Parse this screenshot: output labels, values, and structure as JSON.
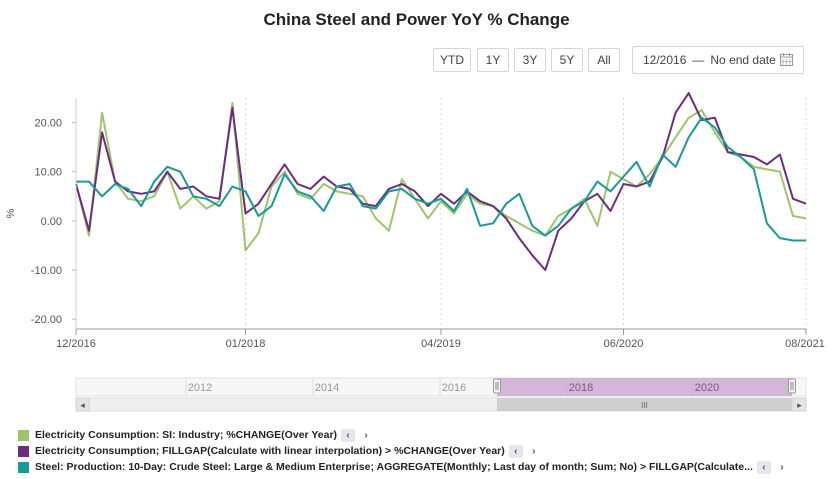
{
  "title": "China Steel and Power YoY % Change",
  "range_buttons": [
    "YTD",
    "1Y",
    "3Y",
    "5Y",
    "All"
  ],
  "date_range": {
    "start": "12/2016",
    "separator": "—",
    "end": "No end date"
  },
  "calendar_icon": "calendar-icon",
  "navigator": {
    "year_labels": [
      "2012",
      "2014",
      "2016",
      "2018",
      "2020"
    ],
    "scroll_left": "◂",
    "scroll_right": "▸",
    "grip": "III"
  },
  "legend": [
    {
      "label": "Electricity Consumption: SI: Industry; %CHANGE(Over Year)",
      "color": "#9dc56a"
    },
    {
      "label": "Electricity Consumption; FILLGAP(Calculate with linear interpolation) > %CHANGE(Over Year)",
      "color": "#6d2c7e"
    },
    {
      "label": "Steel: Production: 10-Day: Crude Steel: Large & Medium Enterprise; AGGREGATE(Monthly; Last day of month; Sum; No) > FILLGAP(Calculate...",
      "color": "#169b97"
    }
  ],
  "legend_nav": {
    "prev": "‹",
    "next": "›"
  },
  "chart_data": {
    "type": "line",
    "ylabel": "%",
    "ylim": [
      -22,
      25
    ],
    "yticks": [
      20,
      10,
      0,
      -10,
      -20
    ],
    "ytick_labels": [
      "20.00",
      "10.00",
      "0.00",
      "-10.00",
      "-20.00"
    ],
    "x_range": [
      "2016-12",
      "2021-08"
    ],
    "xticks": [
      "2016-12",
      "2018-01",
      "2019-04",
      "2020-06",
      "2021-08"
    ],
    "xtick_labels": [
      "12/2016",
      "01/2018",
      "04/2019",
      "06/2020",
      "08/2021"
    ],
    "grid": "vertical dashed",
    "legend_position": "bottom-left",
    "series": [
      {
        "name": "Electricity Consumption: SI: Industry; %CHANGE(Over Year)",
        "color": "#9dc56a",
        "x": [
          "2016-12",
          "2017-01",
          "2017-02",
          "2017-03",
          "2017-04",
          "2017-05",
          "2017-06",
          "2017-07",
          "2017-08",
          "2017-09",
          "2017-10",
          "2017-11",
          "2017-12",
          "2018-01",
          "2018-02",
          "2018-03",
          "2018-04",
          "2018-05",
          "2018-06",
          "2018-07",
          "2018-08",
          "2018-09",
          "2018-10",
          "2018-11",
          "2018-12",
          "2019-01",
          "2019-02",
          "2019-03",
          "2019-04",
          "2019-05",
          "2019-06",
          "2019-07",
          "2019-08",
          "2019-09",
          "2019-10",
          "2019-11",
          "2019-12",
          "2020-01",
          "2020-02",
          "2020-03",
          "2020-04",
          "2020-05",
          "2020-06",
          "2020-07",
          "2020-08",
          "2020-09",
          "2020-10",
          "2020-11",
          "2020-12",
          "2021-01",
          "2021-02",
          "2021-03",
          "2021-04",
          "2021-05",
          "2021-06",
          "2021-07",
          "2021-08"
        ],
        "values": [
          7.5,
          -3.0,
          22.0,
          8.0,
          4.5,
          4.0,
          5.0,
          10.0,
          2.5,
          5.0,
          2.5,
          4.0,
          24.0,
          -6.0,
          -2.5,
          7.0,
          10.0,
          5.5,
          4.5,
          7.5,
          6.0,
          5.5,
          5.0,
          0.5,
          -2.0,
          8.5,
          4.5,
          0.5,
          4.0,
          1.5,
          5.5,
          3.5,
          3.0,
          1.0,
          -0.5,
          -2.0,
          -3.0,
          1.0,
          2.5,
          4.5,
          -1.0,
          10.0,
          8.5,
          7.0,
          9.5,
          13.0,
          17.0,
          21.0,
          22.5,
          18.0,
          14.0,
          13.0,
          11.0,
          10.5,
          10.0,
          1.0,
          0.5
        ]
      },
      {
        "name": "Electricity Consumption; FILLGAP(Calculate with linear interpolation) > %CHANGE(Over Year)",
        "color": "#6d2c7e",
        "x": [
          "2016-12",
          "2017-01",
          "2017-02",
          "2017-03",
          "2017-04",
          "2017-05",
          "2017-06",
          "2017-07",
          "2017-08",
          "2017-09",
          "2017-10",
          "2017-11",
          "2017-12",
          "2018-01",
          "2018-02",
          "2018-03",
          "2018-04",
          "2018-05",
          "2018-06",
          "2018-07",
          "2018-08",
          "2018-09",
          "2018-10",
          "2018-11",
          "2018-12",
          "2019-01",
          "2019-02",
          "2019-03",
          "2019-04",
          "2019-05",
          "2019-06",
          "2019-07",
          "2019-08",
          "2019-09",
          "2019-10",
          "2019-11",
          "2019-12",
          "2020-01",
          "2020-02",
          "2020-03",
          "2020-04",
          "2020-05",
          "2020-06",
          "2020-07",
          "2020-08",
          "2020-09",
          "2020-10",
          "2020-11",
          "2020-12",
          "2021-01",
          "2021-02",
          "2021-03",
          "2021-04",
          "2021-05",
          "2021-06",
          "2021-07",
          "2021-08"
        ],
        "values": [
          7.5,
          -2.0,
          18.0,
          8.0,
          6.0,
          5.5,
          6.0,
          10.0,
          6.5,
          7.0,
          5.0,
          4.5,
          23.0,
          1.5,
          3.5,
          7.5,
          11.5,
          7.5,
          6.5,
          9.0,
          7.0,
          6.5,
          3.5,
          3.0,
          6.5,
          7.5,
          6.0,
          3.0,
          5.5,
          3.5,
          6.0,
          4.0,
          3.0,
          0.5,
          -3.5,
          -7.0,
          -10.0,
          -2.0,
          0.5,
          4.0,
          5.5,
          2.0,
          7.5,
          7.0,
          8.0,
          13.0,
          22.0,
          26.0,
          20.5,
          21.0,
          14.0,
          13.5,
          13.0,
          11.5,
          13.5,
          4.5,
          3.5
        ]
      },
      {
        "name": "Steel: Production: 10-Day: Crude Steel: Large & Medium Enterprise; AGGREGATE(Monthly; Last day of month; Sum; No) > FILLGAP(Calculate...",
        "color": "#169b97",
        "x": [
          "2016-12",
          "2017-01",
          "2017-02",
          "2017-03",
          "2017-04",
          "2017-05",
          "2017-06",
          "2017-07",
          "2017-08",
          "2017-09",
          "2017-10",
          "2017-11",
          "2017-12",
          "2018-01",
          "2018-02",
          "2018-03",
          "2018-04",
          "2018-05",
          "2018-06",
          "2018-07",
          "2018-08",
          "2018-09",
          "2018-10",
          "2018-11",
          "2018-12",
          "2019-01",
          "2019-02",
          "2019-03",
          "2019-04",
          "2019-05",
          "2019-06",
          "2019-07",
          "2019-08",
          "2019-09",
          "2019-10",
          "2019-11",
          "2019-12",
          "2020-01",
          "2020-02",
          "2020-03",
          "2020-04",
          "2020-05",
          "2020-06",
          "2020-07",
          "2020-08",
          "2020-09",
          "2020-10",
          "2020-11",
          "2020-12",
          "2021-01",
          "2021-02",
          "2021-03",
          "2021-04",
          "2021-05",
          "2021-06",
          "2021-07",
          "2021-08"
        ],
        "values": [
          8.0,
          8.0,
          5.0,
          7.5,
          6.5,
          3.0,
          8.0,
          11.0,
          10.0,
          5.0,
          4.5,
          3.0,
          7.0,
          6.0,
          1.0,
          3.0,
          9.5,
          6.0,
          5.0,
          2.0,
          7.0,
          7.5,
          3.0,
          2.5,
          6.0,
          6.5,
          4.5,
          3.5,
          4.5,
          2.0,
          6.5,
          -1.0,
          -0.5,
          3.5,
          5.5,
          -1.0,
          -3.0,
          -1.0,
          2.5,
          4.0,
          8.0,
          6.0,
          9.0,
          12.0,
          7.0,
          13.5,
          11.0,
          17.0,
          21.0,
          19.0,
          15.0,
          13.0,
          10.5,
          -0.5,
          -3.5,
          -4.0,
          -4.0
        ]
      }
    ]
  }
}
